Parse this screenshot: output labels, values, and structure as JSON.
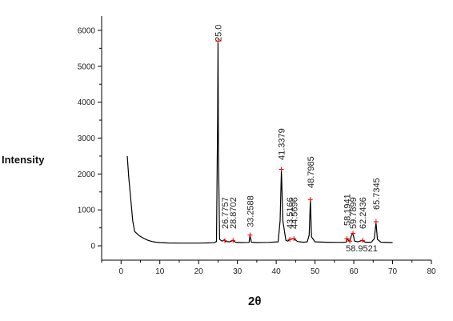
{
  "chart_data": {
    "type": "line",
    "title": "",
    "xlabel": "2θ",
    "ylabel": "Intensity",
    "xlim": [
      -5,
      80
    ],
    "ylim": [
      -400,
      6400
    ],
    "xticks": [
      0,
      10,
      20,
      30,
      40,
      50,
      60,
      70,
      80
    ],
    "yticks": [
      0,
      1000,
      2000,
      3000,
      4000,
      5000,
      6000
    ],
    "grid": false,
    "legend": "none",
    "line_color": "#000000",
    "marker_color": "#ff0000",
    "series": [
      {
        "x": [
          1.6,
          2.0,
          2.5,
          3.0,
          3.5,
          4.0,
          4.5,
          5.0,
          6.0,
          7.0,
          8.0,
          9.0,
          10.0,
          12.0,
          15.0,
          18.0,
          20.0,
          22.0,
          24.0,
          24.6,
          24.9,
          25.0,
          25.1,
          25.4,
          26.0,
          26.7,
          27.0,
          28.0,
          28.8,
          29.5,
          31.0,
          33.0,
          33.26,
          33.6,
          35.0,
          38.0,
          40.5,
          41.0,
          41.34,
          41.7,
          42.5,
          43.0,
          43.5,
          44.5,
          45.5,
          47.0,
          48.0,
          48.5,
          48.8,
          49.1,
          50.0,
          53.0,
          56.0,
          58.0,
          58.19,
          58.95,
          59.4,
          59.79,
          60.2,
          61.0,
          62.24,
          63.0,
          64.5,
          65.3,
          65.73,
          66.1,
          67.0,
          70.0
        ],
        "values": [
          2500,
          1900,
          1300,
          700,
          400,
          350,
          300,
          260,
          200,
          150,
          120,
          100,
          90,
          80,
          75,
          75,
          75,
          80,
          85,
          120,
          3500,
          5700,
          2600,
          180,
          130,
          170,
          120,
          110,
          150,
          100,
          90,
          95,
          300,
          100,
          90,
          95,
          110,
          700,
          2100,
          700,
          150,
          130,
          180,
          200,
          120,
          100,
          110,
          300,
          1280,
          250,
          110,
          100,
          95,
          100,
          200,
          120,
          300,
          350,
          130,
          110,
          150,
          100,
          100,
          200,
          650,
          180,
          100,
          90
        ]
      }
    ],
    "peaks": [
      {
        "x": 25.0,
        "y": 5700,
        "label": "25.0"
      },
      {
        "x": 26.7757,
        "y": 140,
        "label": "26.7757"
      },
      {
        "x": 28.8702,
        "y": 150,
        "label": "28.8702"
      },
      {
        "x": 33.2588,
        "y": 300,
        "label": "33.2588"
      },
      {
        "x": 41.3379,
        "y": 2130,
        "label": "41.3379"
      },
      {
        "x": 43.5166,
        "y": 180,
        "label": "43.5166"
      },
      {
        "x": 44.5696,
        "y": 200,
        "label": "44.5696"
      },
      {
        "x": 48.7985,
        "y": 1290,
        "label": "48.7985"
      },
      {
        "x": 58.1941,
        "y": 200,
        "label": "58.1941"
      },
      {
        "x": 58.9521,
        "y": 130,
        "label": "58.9521"
      },
      {
        "x": 59.7899,
        "y": 350,
        "label": "59.7899"
      },
      {
        "x": 62.2436,
        "y": 150,
        "label": "62.2436"
      },
      {
        "x": 65.7345,
        "y": 670,
        "label": "65.7345"
      }
    ]
  }
}
